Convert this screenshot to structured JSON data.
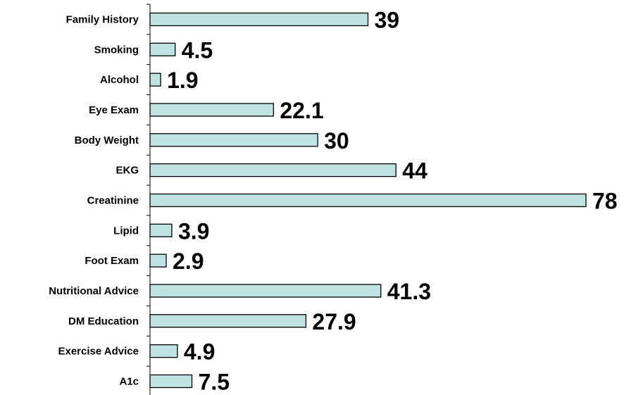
{
  "chart_data": {
    "type": "bar",
    "orientation": "horizontal",
    "categories": [
      "Family History",
      "Smoking",
      "Alcohol",
      "Eye Exam",
      "Body Weight",
      "EKG",
      "Creatinine",
      "Lipid",
      "Foot Exam",
      "Nutritional Advice",
      "DM Education",
      "Exercise Advice",
      "A1c"
    ],
    "values": [
      39,
      4.5,
      1.9,
      22.1,
      30,
      44,
      78,
      3.9,
      2.9,
      41.3,
      27.9,
      4.9,
      7.5
    ],
    "value_labels": [
      "39",
      "4.5",
      "1.9",
      "22.1",
      "30",
      "44",
      "78",
      "3.9",
      "2.9",
      "41.3",
      "27.9",
      "4.9",
      "7.5"
    ],
    "xlim": [
      0,
      78
    ],
    "grid": false,
    "bar_color": "#bfe3e3",
    "bar_outline_color": "#000000"
  }
}
